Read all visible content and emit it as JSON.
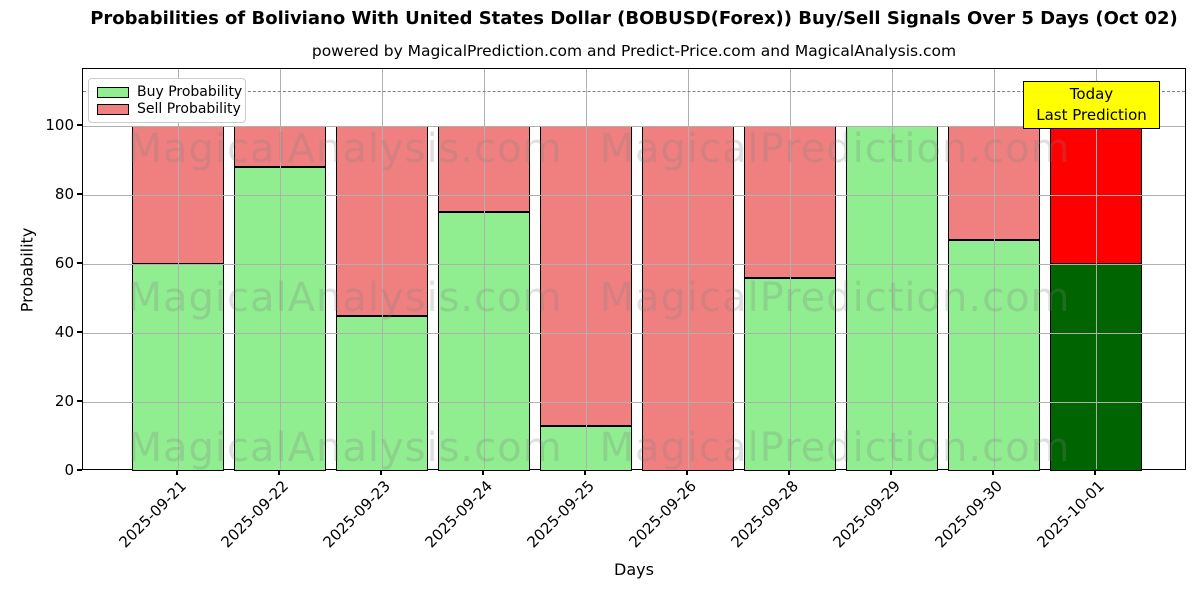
{
  "title": "Probabilities of Boliviano With United States Dollar (BOBUSD(Forex)) Buy/Sell Signals Over 5 Days (Oct 02)",
  "subtitle": "powered by MagicalPrediction.com and Predict-Price.com and MagicalAnalysis.com",
  "legend": [
    {
      "label": "Buy Probability",
      "color": "#90EE90"
    },
    {
      "label": "Sell Probability",
      "color": "#F08080"
    }
  ],
  "annotation": {
    "line1": "Today",
    "line2": "Last Prediction",
    "bg_color": "#FFFF00"
  },
  "watermarks": {
    "left_text": "MagicalAnalysis.com",
    "right_text": "MagicalPrediction.com"
  },
  "chart_data": {
    "type": "bar",
    "stacked": true,
    "title": "Probabilities of Boliviano With United States Dollar (BOBUSD(Forex)) Buy/Sell Signals Over 5 Days (Oct 02)",
    "xlabel": "Days",
    "ylabel": "Probability",
    "categories": [
      "2025-09-21",
      "2025-09-22",
      "2025-09-23",
      "2025-09-24",
      "2025-09-25",
      "2025-09-26",
      "2025-09-28",
      "2025-09-29",
      "2025-09-30",
      "2025-10-01"
    ],
    "series": [
      {
        "name": "Buy Probability",
        "color": "#90EE90",
        "values": [
          60,
          88,
          45,
          75,
          13,
          0,
          56,
          100,
          67,
          60
        ]
      },
      {
        "name": "Sell Probability",
        "color": "#F08080",
        "values": [
          40,
          12,
          55,
          25,
          87,
          100,
          44,
          0,
          33,
          40
        ]
      }
    ],
    "last_bar_colors": {
      "buy": "#006400",
      "sell": "#FF0000"
    },
    "yticks": [
      0,
      20,
      40,
      60,
      80,
      100
    ],
    "ylim": [
      0,
      116.5
    ],
    "dashed_line_y": 110,
    "grid": true,
    "legend_position": "upper left",
    "bar_edge_color": "#000000"
  }
}
